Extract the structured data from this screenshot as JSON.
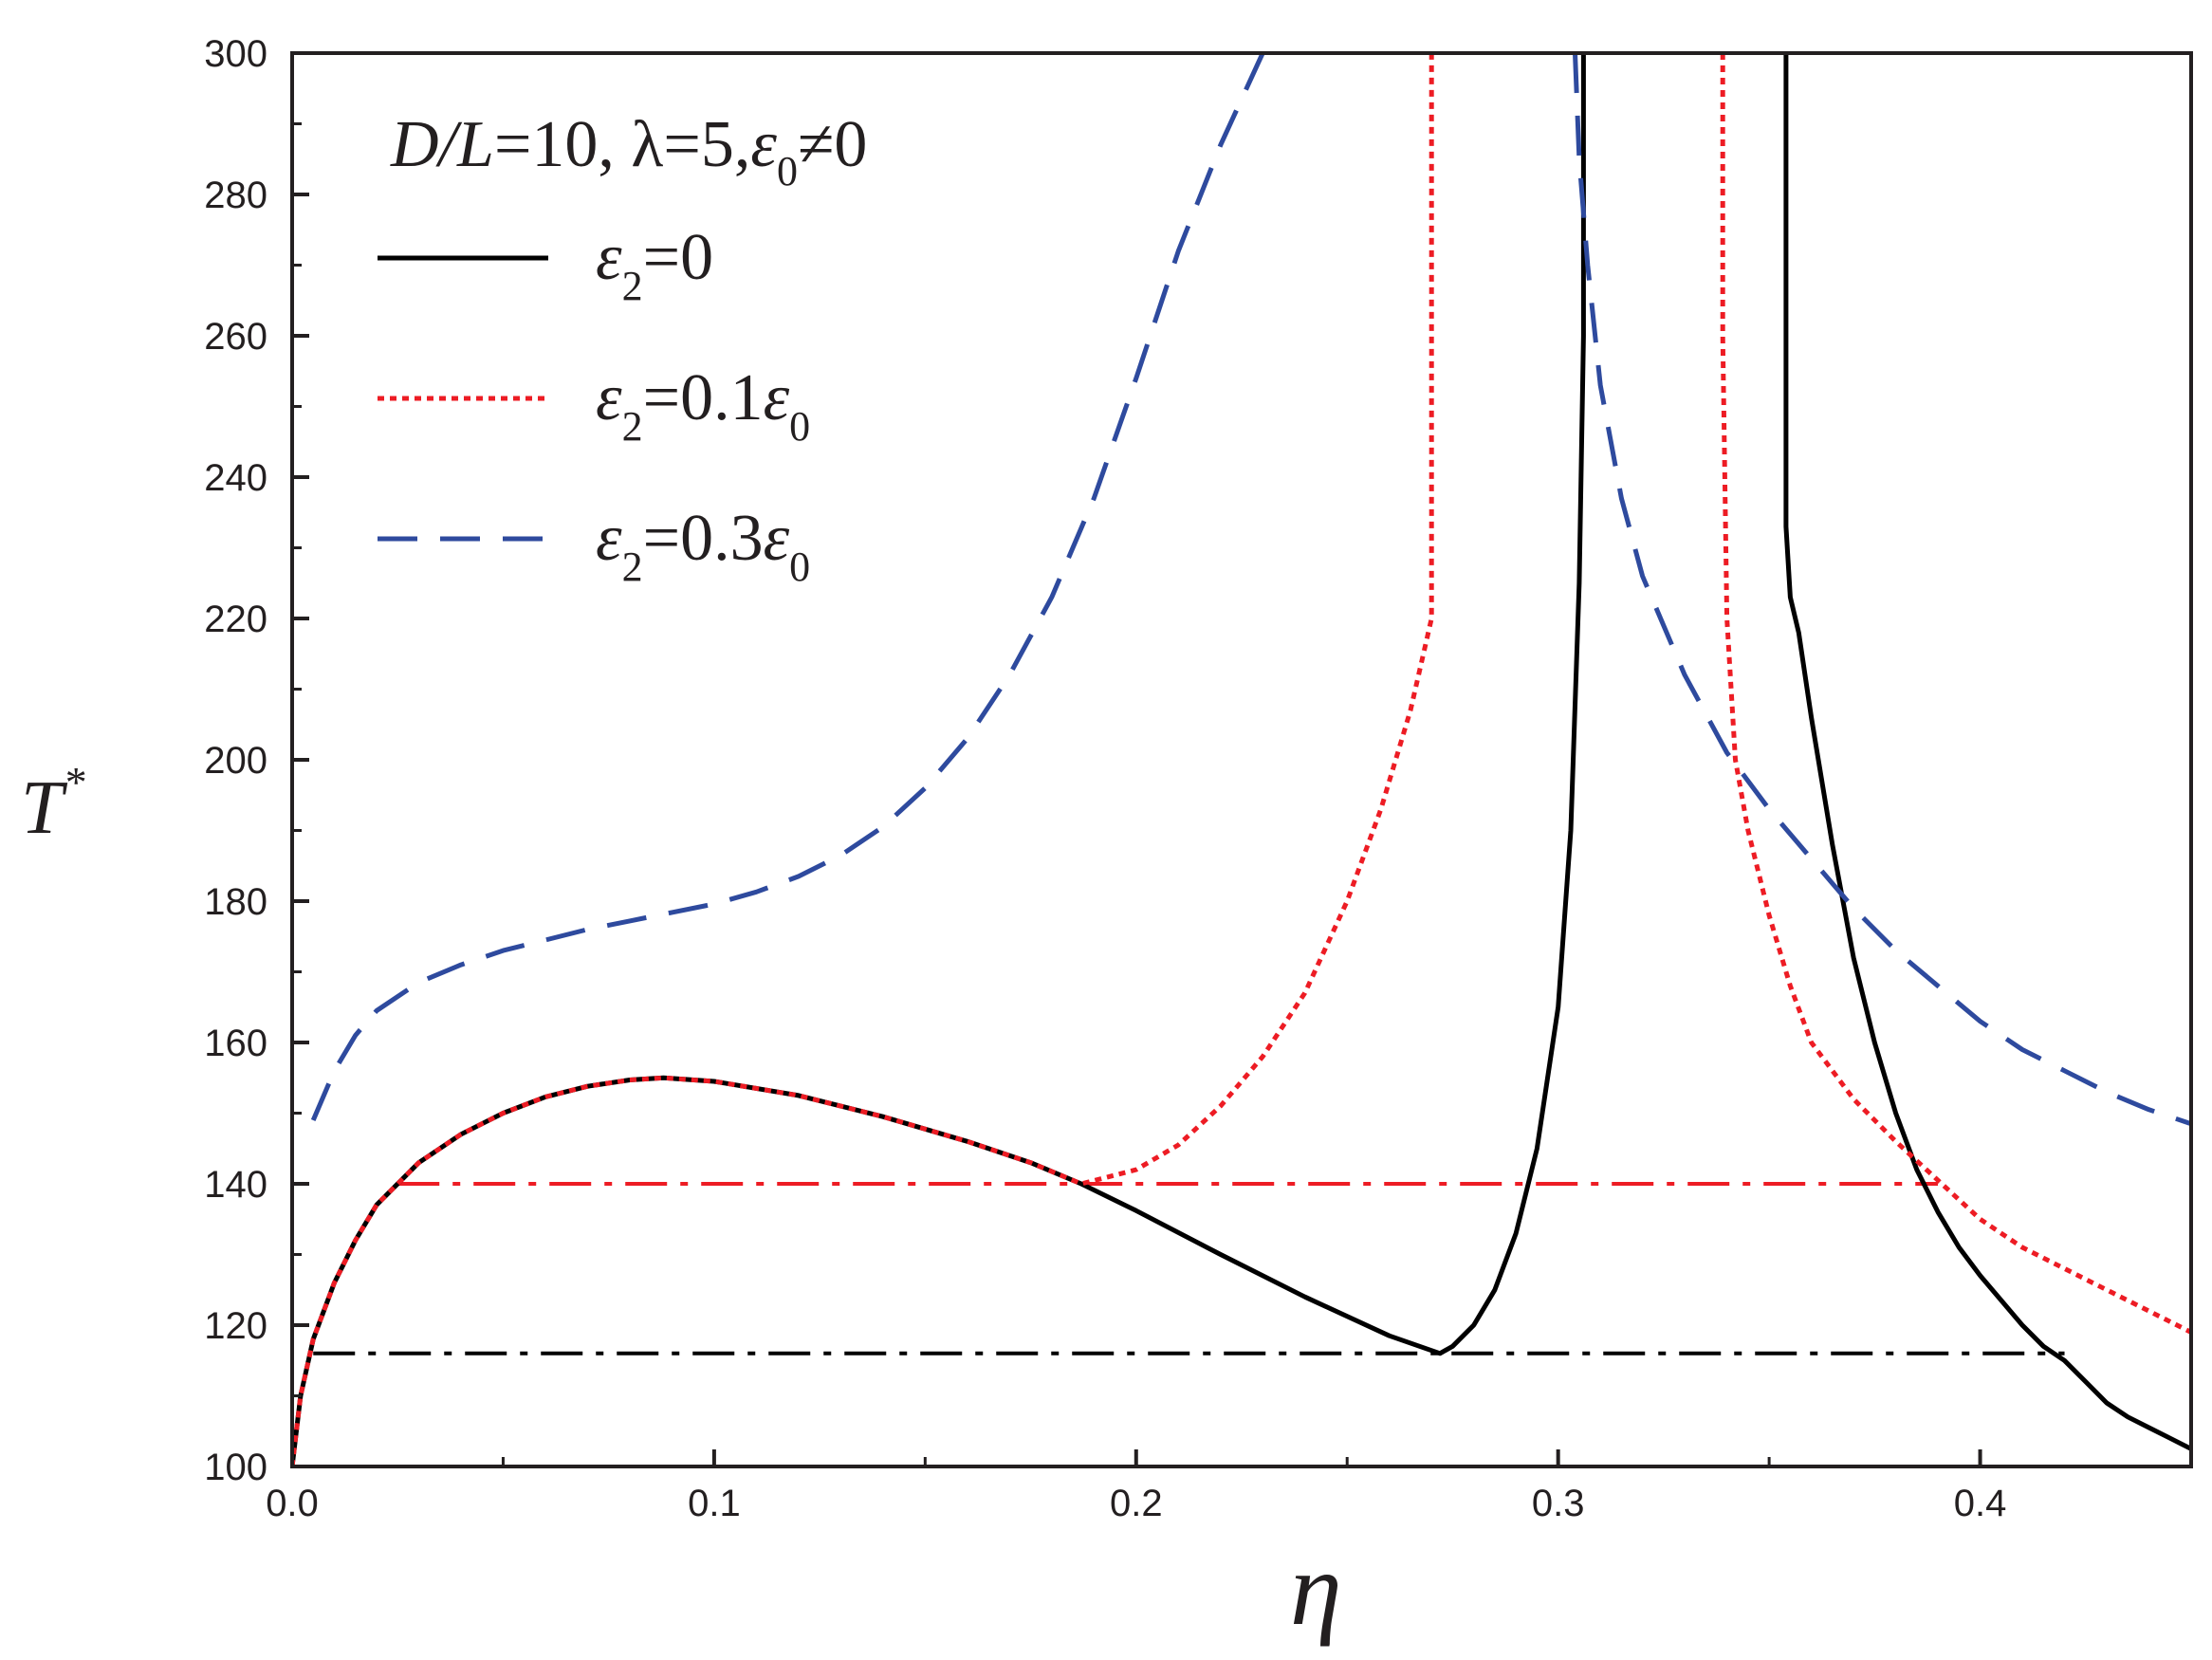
{
  "chart_data": {
    "type": "line",
    "xlabel": "η",
    "ylabel": "T",
    "ylabel_sup": "*",
    "xlim": [
      0.0,
      0.45
    ],
    "ylim": [
      100,
      300
    ],
    "xticks": [
      "0.0",
      "0.1",
      "0.2",
      "0.3",
      "0.4"
    ],
    "yticks": [
      "100",
      "120",
      "140",
      "160",
      "180",
      "200",
      "220",
      "240",
      "260",
      "280",
      "300"
    ],
    "xtick_values": [
      0.0,
      0.1,
      0.2,
      0.3,
      0.4
    ],
    "ytick_values": [
      100,
      120,
      140,
      160,
      180,
      200,
      220,
      240,
      260,
      280,
      300
    ],
    "grid": false,
    "legend_position": "top-left",
    "annotation": {
      "p1": "D/L",
      "p2": "=10, ",
      "p3": "λ",
      "p4": "=5,",
      "p5": "ε",
      "p6": "0",
      "p7": "≠0"
    },
    "series": [
      {
        "legend": {
          "sym": "ε",
          "sub": "2",
          "eq": "=0",
          "tail": "",
          "tail_sub": ""
        },
        "style": "solid",
        "color": "#000000",
        "segments": [
          [
            [
              0.0,
              100
            ],
            [
              0.002,
              110
            ],
            [
              0.005,
              118
            ],
            [
              0.01,
              126
            ],
            [
              0.015,
              132
            ],
            [
              0.02,
              137
            ],
            [
              0.03,
              143
            ],
            [
              0.04,
              147
            ],
            [
              0.05,
              150
            ],
            [
              0.06,
              152.3
            ],
            [
              0.07,
              153.8
            ],
            [
              0.08,
              154.7
            ],
            [
              0.088,
              155
            ],
            [
              0.1,
              154.5
            ],
            [
              0.12,
              152.5
            ],
            [
              0.14,
              149.5
            ],
            [
              0.16,
              146
            ],
            [
              0.175,
              143
            ],
            [
              0.187,
              140
            ],
            [
              0.2,
              136.2
            ],
            [
              0.22,
              130
            ],
            [
              0.24,
              124
            ],
            [
              0.26,
              118.5
            ],
            [
              0.272,
              116
            ],
            [
              0.275,
              117
            ],
            [
              0.28,
              120
            ],
            [
              0.285,
              125
            ],
            [
              0.29,
              133
            ],
            [
              0.295,
              145
            ],
            [
              0.3,
              165
            ],
            [
              0.303,
              190
            ],
            [
              0.305,
              225
            ],
            [
              0.306,
              260
            ],
            [
              0.306,
              300
            ]
          ],
          [
            [
              0.354,
              300
            ],
            [
              0.354,
              233
            ],
            [
              0.355,
              223
            ],
            [
              0.357,
              218
            ],
            [
              0.36,
              206
            ],
            [
              0.365,
              188
            ],
            [
              0.37,
              172
            ],
            [
              0.375,
              160
            ],
            [
              0.38,
              150
            ],
            [
              0.385,
              142
            ],
            [
              0.39,
              136
            ],
            [
              0.395,
              131
            ],
            [
              0.4,
              127
            ],
            [
              0.405,
              123.5
            ],
            [
              0.41,
              120
            ],
            [
              0.415,
              117
            ],
            [
              0.42,
              115
            ],
            [
              0.425,
              112
            ],
            [
              0.43,
              109
            ],
            [
              0.435,
              107
            ],
            [
              0.44,
              105.5
            ],
            [
              0.445,
              104
            ],
            [
              0.45,
              102.5
            ]
          ]
        ]
      },
      {
        "legend": {
          "sym": "ε",
          "sub": "2",
          "eq": "=0.1",
          "tail": "ε",
          "tail_sub": "0"
        },
        "style": "dotted",
        "color": "#ed1c24",
        "segments": [
          [
            [
              0.0,
              100
            ],
            [
              0.002,
              110
            ],
            [
              0.005,
              118
            ],
            [
              0.01,
              126
            ],
            [
              0.015,
              132
            ],
            [
              0.02,
              137
            ],
            [
              0.03,
              143
            ],
            [
              0.04,
              147
            ],
            [
              0.05,
              150
            ],
            [
              0.06,
              152.3
            ],
            [
              0.07,
              153.8
            ],
            [
              0.08,
              154.7
            ],
            [
              0.088,
              155
            ],
            [
              0.1,
              154.5
            ],
            [
              0.12,
              152.5
            ],
            [
              0.14,
              149.5
            ],
            [
              0.16,
              146
            ],
            [
              0.175,
              143
            ],
            [
              0.187,
              140
            ],
            [
              0.2,
              142
            ],
            [
              0.21,
              145.5
            ],
            [
              0.22,
              151
            ],
            [
              0.23,
              158
            ],
            [
              0.24,
              167
            ],
            [
              0.25,
              180
            ],
            [
              0.258,
              193
            ],
            [
              0.265,
              207
            ],
            [
              0.27,
              220
            ],
            [
              0.27,
              260
            ],
            [
              0.27,
              300
            ]
          ],
          [
            [
              0.339,
              300
            ],
            [
              0.339,
              260
            ],
            [
              0.34,
              220
            ],
            [
              0.342,
              200
            ],
            [
              0.345,
              190
            ],
            [
              0.35,
              178
            ],
            [
              0.355,
              168
            ],
            [
              0.36,
              160
            ],
            [
              0.37,
              152
            ],
            [
              0.38,
              146
            ],
            [
              0.39,
              140.5
            ],
            [
              0.4,
              135
            ],
            [
              0.41,
              131
            ],
            [
              0.42,
              128
            ],
            [
              0.43,
              125
            ],
            [
              0.44,
              122
            ],
            [
              0.45,
              119
            ]
          ]
        ]
      },
      {
        "legend": {
          "sym": "ε",
          "sub": "2",
          "eq": "=0.3",
          "tail": "ε",
          "tail_sub": "0"
        },
        "style": "dashed",
        "color": "#2e4a9e",
        "segments": [
          [
            [
              0.005,
              149
            ],
            [
              0.01,
              156
            ],
            [
              0.015,
              161
            ],
            [
              0.02,
              164.5
            ],
            [
              0.03,
              168.5
            ],
            [
              0.04,
              171
            ],
            [
              0.05,
              173
            ],
            [
              0.06,
              174.5
            ],
            [
              0.07,
              176
            ],
            [
              0.08,
              177.2
            ],
            [
              0.09,
              178.4
            ],
            [
              0.1,
              179.6
            ],
            [
              0.11,
              181.3
            ],
            [
              0.12,
              183.5
            ],
            [
              0.13,
              186.5
            ],
            [
              0.14,
              190.5
            ],
            [
              0.15,
              196
            ],
            [
              0.16,
              203
            ],
            [
              0.17,
              212
            ],
            [
              0.18,
              223
            ],
            [
              0.19,
              237
            ],
            [
              0.2,
              254
            ],
            [
              0.21,
              272
            ],
            [
              0.22,
              287
            ],
            [
              0.23,
              300
            ]
          ],
          [
            [
              0.304,
              300
            ],
            [
              0.305,
              285
            ],
            [
              0.307,
              270
            ],
            [
              0.31,
              253
            ],
            [
              0.315,
              237
            ],
            [
              0.32,
              226
            ],
            [
              0.33,
              212
            ],
            [
              0.34,
              201
            ],
            [
              0.35,
              193
            ],
            [
              0.36,
              186
            ],
            [
              0.37,
              179
            ],
            [
              0.38,
              173
            ],
            [
              0.39,
              168
            ],
            [
              0.4,
              163
            ],
            [
              0.41,
              159
            ],
            [
              0.42,
              156
            ],
            [
              0.43,
              153
            ],
            [
              0.44,
              150.5
            ],
            [
              0.45,
              148.5
            ]
          ]
        ]
      }
    ],
    "reference_lines": [
      {
        "y": 140,
        "x": [
          0.025,
          0.39
        ],
        "style": "dashdot",
        "color": "#ed1c24"
      },
      {
        "y": 116,
        "x": [
          0.005,
          0.42
        ],
        "style": "dashdot",
        "color": "#000000"
      }
    ]
  }
}
